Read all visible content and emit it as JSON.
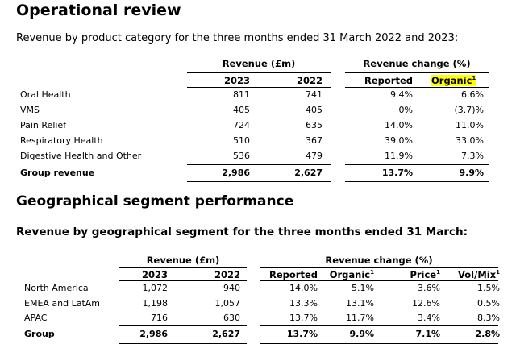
{
  "section1": {
    "title": "Operational review",
    "subtitle": "Revenue by product category for the three months ended 31 March 2022 and 2023:",
    "header": {
      "revenue": "Revenue (£m)",
      "change": "Revenue change (%)",
      "y2023": "2023",
      "y2022": "2022",
      "reported": "Reported",
      "organic": "Organic",
      "organic_sup": "1"
    },
    "rows": [
      {
        "label": "Oral Health",
        "r2023": "811",
        "r2022": "741",
        "reported": "9.4%",
        "organic": "6.6%"
      },
      {
        "label": "VMS",
        "r2023": "405",
        "r2022": "405",
        "reported": "0%",
        "organic": "(3.7)%"
      },
      {
        "label": "Pain Relief",
        "r2023": "724",
        "r2022": "635",
        "reported": "14.0%",
        "organic": "11.0%"
      },
      {
        "label": "Respiratory Health",
        "r2023": "510",
        "r2022": "367",
        "reported": "39.0%",
        "organic": "33.0%"
      },
      {
        "label": "Digestive Health and Other",
        "r2023": "536",
        "r2022": "479",
        "reported": "11.9%",
        "organic": "7.3%"
      }
    ],
    "total": {
      "label": "Group revenue",
      "r2023": "2,986",
      "r2022": "2,627",
      "reported": "13.7%",
      "organic": "9.9%"
    }
  },
  "section2": {
    "title": "Geographical segment performance",
    "subtitle": "Revenue by geographical segment for the three months ended 31 March:",
    "header": {
      "revenue": "Revenue (£m)",
      "change": "Revenue change (%)",
      "y2023": "2023",
      "y2022": "2022",
      "reported": "Reported",
      "organic": "Organic",
      "price": "Price",
      "volmix": "Vol/Mix",
      "sup": "1"
    },
    "rows": [
      {
        "label": "North America",
        "r2023": "1,072",
        "r2022": "940",
        "reported": "14.0%",
        "organic": "5.1%",
        "price": "3.6%",
        "volmix": "1.5%"
      },
      {
        "label": "EMEA and LatAm",
        "r2023": "1,198",
        "r2022": "1,057",
        "reported": "13.3%",
        "organic": "13.1%",
        "price": "12.6%",
        "volmix": "0.5%"
      },
      {
        "label": "APAC",
        "r2023": "716",
        "r2022": "630",
        "reported": "13.7%",
        "organic": "11.7%",
        "price": "3.4%",
        "volmix": "8.3%"
      }
    ],
    "total": {
      "label": "Group",
      "r2023": "2,986",
      "r2022": "2,627",
      "reported": "13.7%",
      "organic": "9.9%",
      "price": "7.1%",
      "volmix": "2.8%"
    }
  },
  "colors": {
    "highlight": "#ffff00",
    "text": "#000000"
  }
}
